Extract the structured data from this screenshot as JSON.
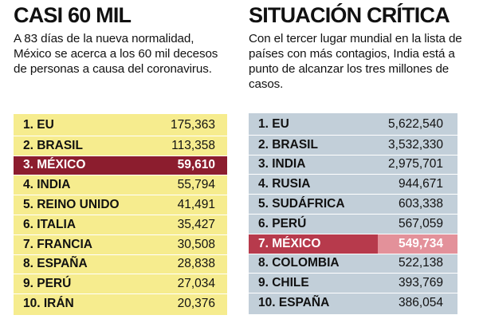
{
  "left": {
    "title": "CASI 60 MIL",
    "description": "A 83 días de la nueva normalidad, México se acerca a los 60 mil decesos de personas a causa del coronavirus.",
    "rows": [
      {
        "label": "1. EU",
        "value": "175,363"
      },
      {
        "label": "2. BRASIL",
        "value": "113,358"
      },
      {
        "label": "3. MÉXICO",
        "value": "59,610"
      },
      {
        "label": "4. INDIA",
        "value": "55,794"
      },
      {
        "label": "5. REINO UNIDO",
        "value": "41,491"
      },
      {
        "label": "6. ITALIA",
        "value": "35,427"
      },
      {
        "label": "7. FRANCIA",
        "value": "30,508"
      },
      {
        "label": "8. ESPAÑA",
        "value": "28,838"
      },
      {
        "label": "9. PERÚ",
        "value": "27,034"
      },
      {
        "label": "10. IRÁN",
        "value": "20,376"
      }
    ],
    "highlight_color": "#8c1d2e",
    "table_color": "#f6ec8e"
  },
  "right": {
    "title": "SITUACIÓN CRÍTICA",
    "description": "Con el tercer lugar mundial en la lista de países con más contagios, India está a punto de alcanzar los tres millones de casos.",
    "rows": [
      {
        "label": "1.  EU",
        "value": "5,622,540"
      },
      {
        "label": "2.  BRASIL",
        "value": "3,532,330"
      },
      {
        "label": "3.  INDIA",
        "value": "2,975,701"
      },
      {
        "label": "4.  RUSIA",
        "value": "944,671"
      },
      {
        "label": "5.  SUDÁFRICA",
        "value": "603,338"
      },
      {
        "label": "6.  PERÚ",
        "value": "567,059"
      },
      {
        "label": "7.  MÉXICO",
        "value": "549,734"
      },
      {
        "label": "8.  COLOMBIA",
        "value": "522,138"
      },
      {
        "label": "9.  CHILE",
        "value": "393,769"
      },
      {
        "label": "10. ESPAÑA",
        "value": "386,054"
      }
    ],
    "highlight_color": "#b73a4c",
    "table_color": "#c2cfd9"
  }
}
